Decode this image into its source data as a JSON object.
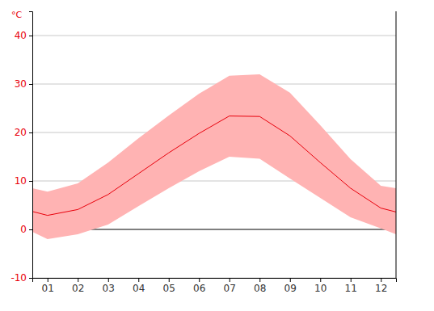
{
  "chart_data": {
    "type": "line",
    "ylabel": "°C",
    "x": [
      0.5,
      1,
      2,
      3,
      4,
      5,
      6,
      7,
      8,
      9,
      10,
      11,
      12,
      12.5
    ],
    "xlim": [
      0.5,
      12.5
    ],
    "xticks": [
      {
        "value": 1,
        "label": "01"
      },
      {
        "value": 2,
        "label": "02"
      },
      {
        "value": 3,
        "label": "03"
      },
      {
        "value": 4,
        "label": "04"
      },
      {
        "value": 5,
        "label": "05"
      },
      {
        "value": 6,
        "label": "06"
      },
      {
        "value": 7,
        "label": "07"
      },
      {
        "value": 8,
        "label": "08"
      },
      {
        "value": 9,
        "label": "09"
      },
      {
        "value": 10,
        "label": "10"
      },
      {
        "value": 11,
        "label": "11"
      },
      {
        "value": 12,
        "label": "12"
      }
    ],
    "ylim": [
      -10,
      45
    ],
    "yticks": [
      -10,
      0,
      10,
      20,
      30,
      40
    ],
    "grid": true,
    "series": [
      {
        "type": "band",
        "color": "#ffb3b3",
        "low": [
          -0.5,
          -2.0,
          -1.0,
          1.0,
          4.8,
          8.5,
          12.0,
          15.0,
          14.6,
          10.5,
          6.5,
          2.5,
          0.2,
          -1.0
        ],
        "high": [
          8.5,
          7.8,
          9.5,
          13.8,
          18.8,
          23.5,
          28.0,
          31.7,
          32.0,
          28.2,
          21.5,
          14.5,
          9.0,
          8.5
        ]
      },
      {
        "type": "line",
        "color": "#e8000b",
        "values": [
          3.7,
          2.9,
          4.1,
          7.2,
          11.5,
          15.8,
          19.8,
          23.4,
          23.3,
          19.3,
          13.8,
          8.5,
          4.4,
          3.6
        ]
      }
    ]
  }
}
